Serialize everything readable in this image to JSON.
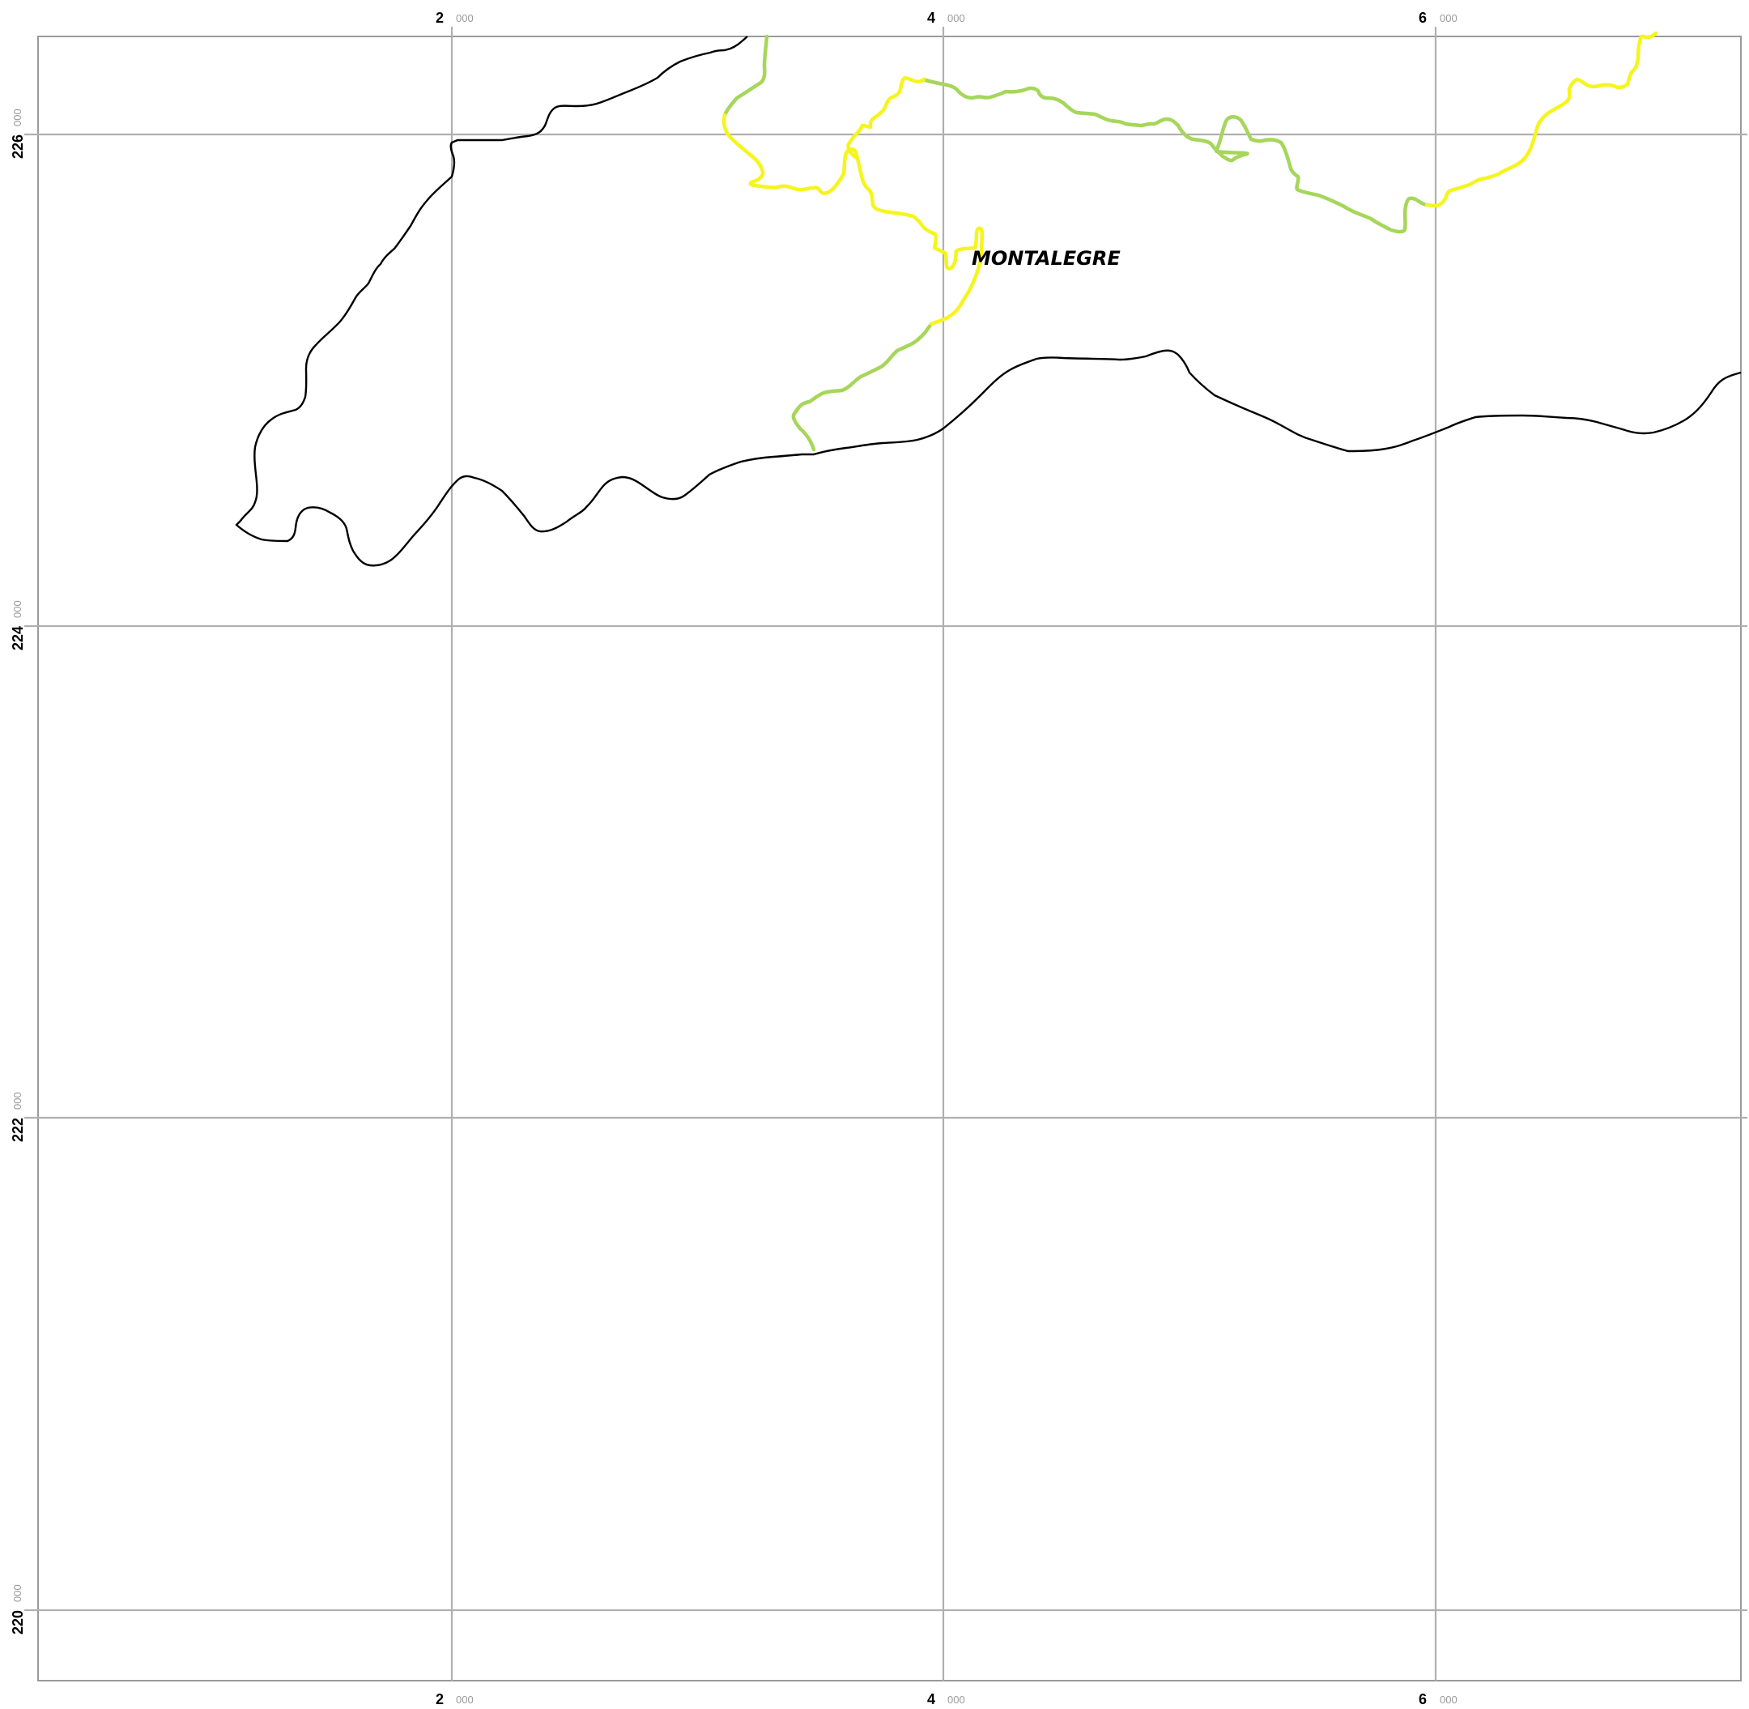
{
  "map": {
    "place_label": "MONTALEGRE",
    "x_ticks": [
      {
        "major": "2",
        "minor": "000"
      },
      {
        "major": "4",
        "minor": "000"
      },
      {
        "major": "6",
        "minor": "000"
      }
    ],
    "y_ticks": [
      {
        "major": "226",
        "minor": "000"
      },
      {
        "major": "224",
        "minor": "000"
      },
      {
        "major": "222",
        "minor": "000"
      },
      {
        "major": "220",
        "minor": "000"
      }
    ],
    "colors": {
      "grid": "#b0b0b0",
      "frame": "#9a9a9a",
      "boundary": "#000000",
      "road_green": "#a6d65a",
      "road_yellow": "#f5f51e"
    },
    "layers": [
      "municipal-boundary",
      "road-network-green",
      "road-network-yellow"
    ]
  }
}
